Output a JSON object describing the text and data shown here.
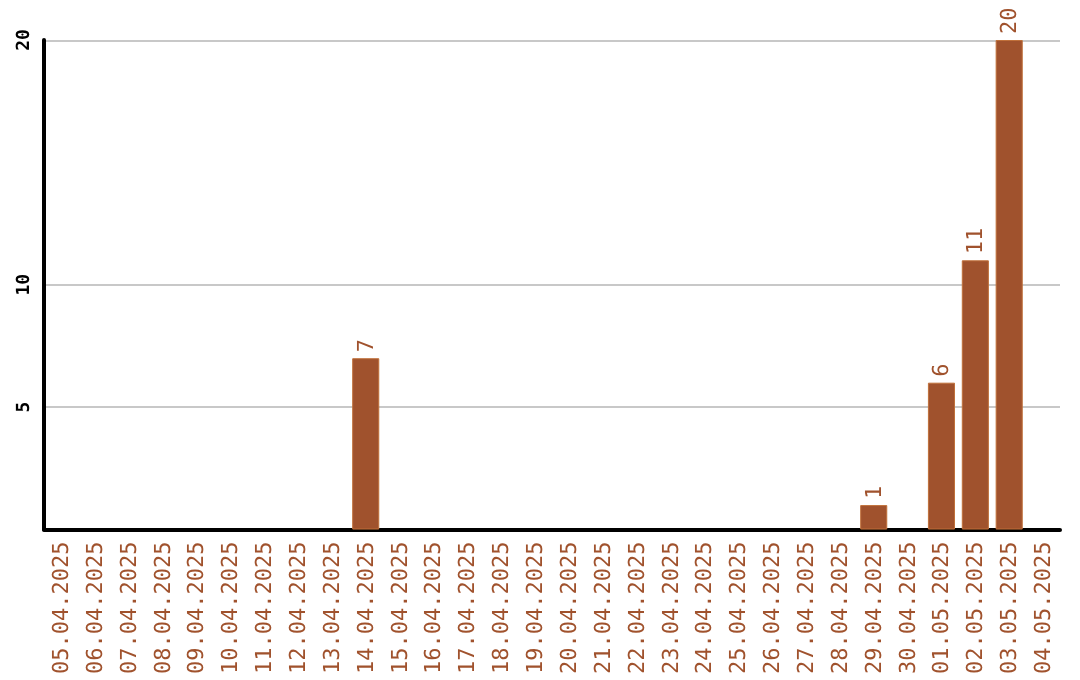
{
  "chart_data": {
    "type": "bar",
    "categories": [
      "05.04.2025",
      "06.04.2025",
      "07.04.2025",
      "08.04.2025",
      "09.04.2025",
      "10.04.2025",
      "11.04.2025",
      "12.04.2025",
      "13.04.2025",
      "14.04.2025",
      "15.04.2025",
      "16.04.2025",
      "17.04.2025",
      "18.04.2025",
      "19.04.2025",
      "20.04.2025",
      "21.04.2025",
      "22.04.2025",
      "23.04.2025",
      "24.04.2025",
      "25.04.2025",
      "26.04.2025",
      "27.04.2025",
      "28.04.2025",
      "29.04.2025",
      "30.04.2025",
      "01.05.2025",
      "02.05.2025",
      "03.05.2025",
      "04.05.2025"
    ],
    "values": [
      null,
      null,
      null,
      null,
      null,
      null,
      null,
      null,
      null,
      7,
      null,
      null,
      null,
      null,
      null,
      null,
      null,
      null,
      null,
      null,
      null,
      null,
      null,
      null,
      1,
      null,
      6,
      11,
      20,
      null
    ],
    "color": "#a0522d",
    "ylim": [
      0,
      20
    ],
    "yticks": [
      5,
      10,
      20
    ],
    "grid": "y",
    "data_labels": true
  }
}
